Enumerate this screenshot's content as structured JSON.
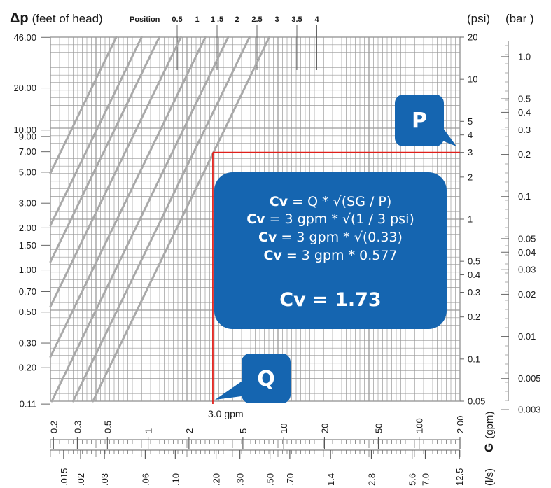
{
  "chart_data": {
    "type": "line",
    "title": "",
    "y_left_title_symbol": "Δp",
    "y_left_title_rest": "(feet of head)",
    "y_left_ticks": [
      "46.00",
      "20.00",
      "10.00",
      "9.00",
      "7.00",
      "5.00",
      "3.00",
      "2.00",
      "1.50",
      "1.00",
      "0.70",
      "0.50",
      "0.30",
      "0.20",
      "0.11"
    ],
    "y_left_values": [
      46,
      20,
      10,
      9,
      7,
      5,
      3,
      2,
      1.5,
      1,
      0.7,
      0.5,
      0.3,
      0.2,
      0.11
    ],
    "y_psi_title": "(psi)",
    "y_psi_ticks": [
      "20",
      "10",
      "5",
      "4",
      "3",
      "2",
      "1",
      "0.5",
      "0.4",
      "0.3",
      "0.2",
      "0.1",
      "0.05"
    ],
    "y_psi_values": [
      20,
      10,
      5,
      4,
      3,
      2,
      1,
      0.5,
      0.4,
      0.3,
      0.2,
      0.1,
      0.05
    ],
    "y_bar_title": "(bar )",
    "y_bar_ticks": [
      "1.0",
      "0.5",
      "0.4",
      "0.3",
      "0.2",
      "0.1",
      "0.05",
      "0.04",
      "0.03",
      "0.02",
      "0.01",
      "0.005",
      "0.003"
    ],
    "y_bar_values": [
      1.0,
      0.5,
      0.4,
      0.3,
      0.2,
      0.1,
      0.05,
      0.04,
      0.03,
      0.02,
      0.01,
      0.005,
      0.003
    ],
    "x_gpm_title": "(gpm)",
    "x_gpm_letter": "G",
    "x_gpm_ticks": [
      "0.2",
      "0.3",
      "0.5",
      "1",
      "2",
      "5",
      "10",
      "20",
      "50",
      "100",
      "2 00"
    ],
    "x_gpm_values": [
      0.2,
      0.3,
      0.5,
      1,
      2,
      5,
      10,
      20,
      50,
      100,
      200
    ],
    "x_ls_title": "(l/s)",
    "x_ls_ticks": [
      ".015",
      ".02",
      ".03",
      ".06",
      ".10",
      ".20",
      ".30",
      ".50",
      ".70",
      "1.4",
      "2.8",
      "5.6",
      "7.0",
      "12.5"
    ],
    "x_ls_values": [
      0.015,
      0.02,
      0.03,
      0.06,
      0.1,
      0.2,
      0.3,
      0.5,
      0.7,
      1.4,
      2.8,
      5.6,
      7.0,
      12.5
    ],
    "xlim_gpm": [
      0.19,
      200
    ],
    "ylim_psi": [
      0.05,
      20
    ],
    "log_x": true,
    "log_y": true,
    "grid": true,
    "position_title": "Position",
    "series": [
      {
        "name": "0.5",
        "cv": 0.13
      },
      {
        "name": "1",
        "cv": 0.2
      },
      {
        "name": "1 .5",
        "cv": 0.27
      },
      {
        "name": "2",
        "cv": 0.39
      },
      {
        "name": "2.5",
        "cv": 0.59
      },
      {
        "name": "3",
        "cv": 0.87
      },
      {
        "name": "3.5",
        "cv": 1.25
      },
      {
        "name": "4",
        "cv": 1.75
      }
    ],
    "example": {
      "flow_gpm": 3.0,
      "pressure_psi": 3,
      "flow_label": "3.0 gpm",
      "p_badge": "P",
      "q_badge": "Q"
    },
    "formula": {
      "lines": [
        {
          "bold": "Cv",
          "rest": " = Q * √(SG / P)"
        },
        {
          "bold": "Cv",
          "rest": " = 3 gpm * √(1 / 3 psi)"
        },
        {
          "bold": "Cv",
          "rest": " = 3 gpm * √(0.33)"
        },
        {
          "bold": "Cv",
          "rest": " = 3 gpm * 0.577"
        }
      ],
      "result": "Cv = 1.73"
    }
  },
  "colors": {
    "grid": "#9a9a9a",
    "curve": "#a9a9a9",
    "red": "#e0201b",
    "callout": "#1565b0",
    "text": "#1a1a1a"
  }
}
